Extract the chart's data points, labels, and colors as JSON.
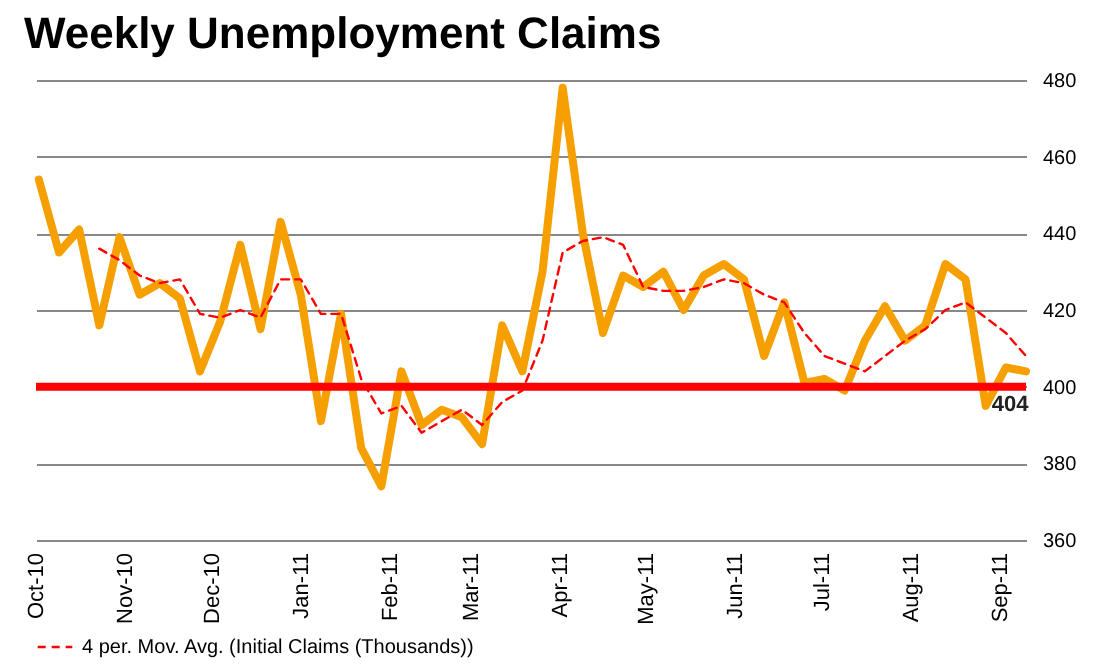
{
  "chart_data": {
    "type": "line",
    "title": "Weekly Unemployment Claims",
    "x": [
      "2010-10-02",
      "2010-10-09",
      "2010-10-16",
      "2010-10-23",
      "2010-10-30",
      "2010-11-06",
      "2010-11-13",
      "2010-11-20",
      "2010-11-27",
      "2010-12-04",
      "2010-12-11",
      "2010-12-18",
      "2010-12-25",
      "2011-01-01",
      "2011-01-08",
      "2011-01-15",
      "2011-01-22",
      "2011-01-29",
      "2011-02-05",
      "2011-02-12",
      "2011-02-19",
      "2011-02-26",
      "2011-03-05",
      "2011-03-12",
      "2011-03-19",
      "2011-03-26",
      "2011-04-02",
      "2011-04-09",
      "2011-04-16",
      "2011-04-23",
      "2011-04-30",
      "2011-05-07",
      "2011-05-14",
      "2011-05-21",
      "2011-05-28",
      "2011-06-04",
      "2011-06-11",
      "2011-06-18",
      "2011-06-25",
      "2011-07-02",
      "2011-07-09",
      "2011-07-16",
      "2011-07-23",
      "2011-07-30",
      "2011-08-06",
      "2011-08-13",
      "2011-08-20",
      "2011-08-27",
      "2011-09-03",
      "2011-09-10"
    ],
    "series": [
      {
        "color": "#f5a000",
        "line_style": "solid",
        "values": [
          454,
          435,
          441,
          416,
          439,
          424,
          427,
          423,
          404,
          417,
          437,
          415,
          443,
          424,
          391,
          419,
          384,
          374,
          404,
          390,
          394,
          392,
          385,
          416,
          404,
          430,
          478,
          440,
          414,
          429,
          426,
          430,
          420,
          429,
          432,
          428,
          408,
          422,
          401,
          402,
          399,
          412,
          421,
          412,
          416,
          432,
          428,
          395,
          405,
          404
        ]
      },
      {
        "name": "4 per. Mov. Avg. (Initial Claims (Thousands))",
        "color": "#ff0000",
        "line_style": "dashed",
        "x": [
          "2010-10-23",
          "2010-10-30",
          "2010-11-06",
          "2010-11-13",
          "2010-11-20",
          "2010-11-27",
          "2010-12-04",
          "2010-12-11",
          "2010-12-18",
          "2010-12-25",
          "2011-01-01",
          "2011-01-08",
          "2011-01-15",
          "2011-01-22",
          "2011-01-29",
          "2011-02-05",
          "2011-02-12",
          "2011-02-19",
          "2011-02-26",
          "2011-03-05",
          "2011-03-12",
          "2011-03-19",
          "2011-03-26",
          "2011-04-02",
          "2011-04-09",
          "2011-04-16",
          "2011-04-23",
          "2011-04-30",
          "2011-05-07",
          "2011-05-14",
          "2011-05-21",
          "2011-05-28",
          "2011-06-04",
          "2011-06-11",
          "2011-06-18",
          "2011-06-25",
          "2011-07-02",
          "2011-07-09",
          "2011-07-16",
          "2011-07-23",
          "2011-07-30",
          "2011-08-06",
          "2011-08-13",
          "2011-08-20",
          "2011-08-27",
          "2011-09-03",
          "2011-09-10"
        ],
        "values": [
          436,
          433,
          429,
          427,
          428,
          419,
          418,
          420,
          418,
          428,
          428,
          419,
          419,
          402,
          393,
          395,
          388,
          391,
          394,
          390,
          396,
          399,
          412,
          435,
          438,
          439,
          437,
          426,
          425,
          425,
          426,
          428,
          427,
          424,
          422,
          414,
          408,
          406,
          404,
          408,
          412,
          415,
          420,
          422,
          418,
          414,
          408
        ]
      }
    ],
    "xlim": [
      "2010-10-01",
      "2011-09-10"
    ],
    "xticks": [
      {
        "value": "2010-10-01",
        "label": "Oct-10"
      },
      {
        "value": "2010-11-01",
        "label": "Nov-10"
      },
      {
        "value": "2010-12-01",
        "label": "Dec-10"
      },
      {
        "value": "2011-01-01",
        "label": "Jan-11"
      },
      {
        "value": "2011-02-01",
        "label": "Feb-11"
      },
      {
        "value": "2011-03-01",
        "label": "Mar-11"
      },
      {
        "value": "2011-04-01",
        "label": "Apr-11"
      },
      {
        "value": "2011-05-01",
        "label": "May-11"
      },
      {
        "value": "2011-06-01",
        "label": "Jun-11"
      },
      {
        "value": "2011-07-01",
        "label": "Jul-11"
      },
      {
        "value": "2011-08-01",
        "label": "Aug-11"
      },
      {
        "value": "2011-09-01",
        "label": "Sep-11"
      }
    ],
    "ylim": [
      360,
      480
    ],
    "yticks": [
      360,
      380,
      400,
      420,
      440,
      460,
      480
    ],
    "grid": "y",
    "legend": "bottom left",
    "marker": "none",
    "ref_lines": [
      {
        "axis": "y",
        "value": 400,
        "color": "#ff0000"
      }
    ],
    "annotations": [
      {
        "text": "404",
        "x": "2011-09-10",
        "y": 404
      }
    ]
  }
}
